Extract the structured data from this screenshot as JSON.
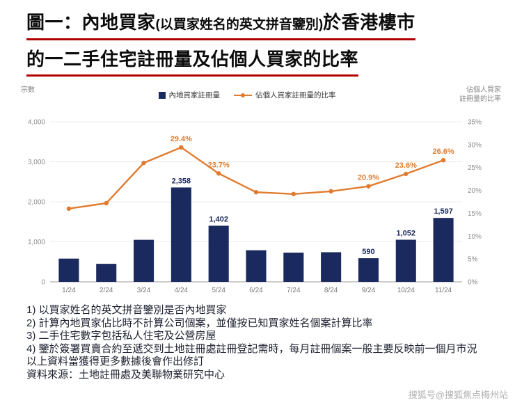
{
  "title": {
    "line1_main1": "圖一：內地買家",
    "line1_paren": "(以買家姓名的英文拼音鑒別)",
    "line1_main2": "於香港樓市",
    "line2": "的一二手住宅註冊量及佔個人買家的比率"
  },
  "header": {
    "axis_caption_right": [
      "佔個人買家",
      "註冊量的比率"
    ]
  },
  "colors": {
    "navy": "#1b2a5e",
    "orange": "#e07b2e",
    "title_underline": "#b20000"
  },
  "chart_data": {
    "type": "bar",
    "categories": [
      "1/24",
      "2/24",
      "3/24",
      "4/24",
      "5/24",
      "6/24",
      "7/24",
      "8/24",
      "9/24",
      "10/24",
      "11/24"
    ],
    "series": [
      {
        "name": "內地買家註冊量",
        "type": "bar",
        "axis": "left",
        "color": "#1b2a5e",
        "values": [
          580,
          450,
          1050,
          2358,
          1402,
          790,
          730,
          740,
          590,
          1052,
          1597
        ],
        "labels": [
          null,
          null,
          null,
          "2,358",
          "1,402",
          null,
          null,
          null,
          "590",
          "1,052",
          "1,597"
        ]
      },
      {
        "name": "佔個人買家註冊量的比率",
        "type": "line",
        "axis": "right",
        "color": "#e07b2e",
        "values": [
          16.0,
          17.2,
          26.0,
          29.4,
          23.7,
          19.6,
          19.2,
          19.8,
          20.9,
          23.6,
          26.6
        ],
        "labels": [
          null,
          null,
          null,
          "29.4%",
          "23.7%",
          null,
          null,
          null,
          "20.9%",
          "23.6%",
          "26.6%"
        ]
      }
    ],
    "left_axis": {
      "title": "宗數",
      "min": 0,
      "max": 4000,
      "tick_labels": [
        "0",
        "1,000",
        "2,000",
        "3,000",
        "4,000"
      ]
    },
    "right_axis": {
      "title": "佔個人買家註冊量的比率",
      "min": 0,
      "max": 35,
      "tick_labels": [
        "0%",
        "5%",
        "10%",
        "15%",
        "20%",
        "25%",
        "30%",
        "35%"
      ]
    },
    "grid": true,
    "legend_position": "top-center"
  },
  "footnotes": [
    "1) 以買家姓名的英文拼音鑒別是否內地買家",
    "2) 計算內地買家佔比時不計算公司個案，並僅按已知買家姓名個案計算比率",
    "3) 二手住宅數字包括私人住宅及公營房屋",
    "4) 鑒於簽署買賣合約至遞交到土地註冊處註冊登記需時，每月註冊個案一般主要反映前一個月市況",
    "以上資料當獲得更多數據後會作出修訂",
    "資料來源：土地註冊處及美聯物業研究中心"
  ],
  "watermark": "搜狐号@搜狐焦点梅州站"
}
